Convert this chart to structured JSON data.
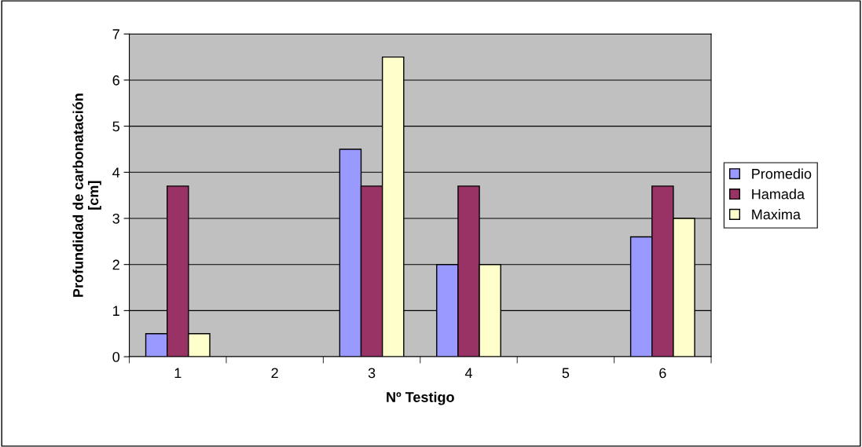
{
  "chart_data": {
    "type": "bar",
    "xlabel": "Nº Testigo",
    "ylabel": "Profundidad de carbonatación\n[cm]",
    "categories": [
      "1",
      "2",
      "3",
      "4",
      "5",
      "6"
    ],
    "series": [
      {
        "name": "Promedio",
        "color": "#9999ff",
        "values": [
          0.5,
          null,
          4.5,
          2,
          null,
          2.6
        ]
      },
      {
        "name": "Hamada",
        "color": "#993366",
        "values": [
          3.7,
          null,
          3.7,
          3.7,
          null,
          3.7
        ]
      },
      {
        "name": "Maxima",
        "color": "#ffffcc",
        "values": [
          0.5,
          null,
          6.5,
          2,
          null,
          3
        ]
      }
    ],
    "ylim": [
      0,
      7
    ],
    "yticks": [
      0,
      1,
      2,
      3,
      4,
      5,
      6,
      7
    ],
    "grid": "y",
    "legend": "right"
  }
}
